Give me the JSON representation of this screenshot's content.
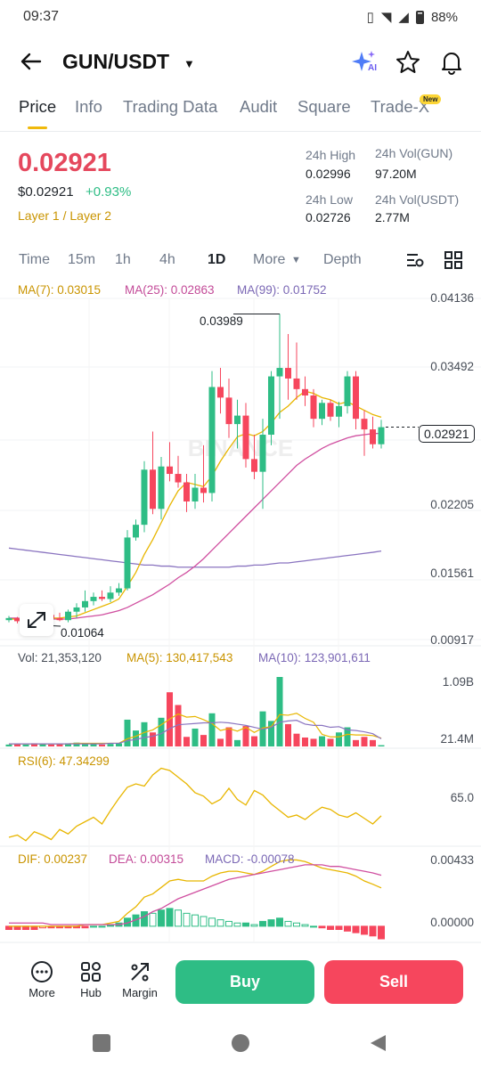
{
  "status": {
    "time": "09:37",
    "battery": "88%"
  },
  "header": {
    "pair": "GUN/USDT",
    "ai_label": "AI"
  },
  "tabs": [
    {
      "label": "Price",
      "active": true
    },
    {
      "label": "Info"
    },
    {
      "label": "Trading Data"
    },
    {
      "label": "Audit"
    },
    {
      "label": "Square"
    },
    {
      "label": "Trade-X",
      "badge": "New"
    }
  ],
  "ticker": {
    "price": "0.02921",
    "usd_price": "$0.02921",
    "change": "+0.93%",
    "tag": "Layer 1 / Layer 2",
    "high_label": "24h High",
    "high": "0.02996",
    "low_label": "24h Low",
    "low": "0.02726",
    "vol_base_label": "24h Vol(GUN)",
    "vol_base": "97.20M",
    "vol_quote_label": "24h Vol(USDT)",
    "vol_quote": "2.77M"
  },
  "timeframes": [
    {
      "label": "Time"
    },
    {
      "label": "15m"
    },
    {
      "label": "1h"
    },
    {
      "label": "4h"
    },
    {
      "label": "1D",
      "active": true
    },
    {
      "label": "More"
    },
    {
      "label": "Depth"
    }
  ],
  "main_chart": {
    "ma7": "MA(7): 0.03015",
    "ma25": "MA(25): 0.02863",
    "ma99": "MA(99): 0.01752",
    "y_labels": [
      "0.04136",
      "0.03492",
      "0.02921",
      "0.02205",
      "0.01561",
      "0.00917"
    ],
    "high_marker": "0.03989",
    "low_marker": "0.01064",
    "watermark": "BINANCE"
  },
  "volume_chart": {
    "vol": "Vol: 21,353,120",
    "ma5": "MA(5): 130,417,543",
    "ma10": "MA(10): 123,901,611",
    "y_labels": [
      "1.09B",
      "21.4M"
    ]
  },
  "rsi_chart": {
    "rsi": "RSI(6): 47.34299",
    "y_label": "65.0"
  },
  "macd_chart": {
    "dif": "DIF: 0.00237",
    "dea": "DEA: 0.00315",
    "macd": "MACD: -0.00078",
    "y_labels": [
      "0.00433",
      "0.00000"
    ]
  },
  "bottom_nav": {
    "more": "More",
    "hub": "Hub",
    "margin": "Margin",
    "buy": "Buy",
    "sell": "Sell"
  },
  "colors": {
    "up": "#2ebd85",
    "down": "#f6465d",
    "accent": "#f0b90b",
    "ma7": "#e8b600",
    "ma25": "#d04fa0",
    "ma99": "#8a74c0"
  },
  "chart_data": {
    "type": "candlestick",
    "y_range": [
      0.00917,
      0.04136
    ],
    "candles": [
      {
        "o": 0.011,
        "h": 0.0114,
        "l": 0.0108,
        "c": 0.0112
      },
      {
        "o": 0.0112,
        "h": 0.0113,
        "l": 0.0107,
        "c": 0.0109
      },
      {
        "o": 0.0109,
        "h": 0.0112,
        "l": 0.0106,
        "c": 0.0111
      },
      {
        "o": 0.0111,
        "h": 0.0115,
        "l": 0.0108,
        "c": 0.011
      },
      {
        "o": 0.011,
        "h": 0.0118,
        "l": 0.01064,
        "c": 0.0115
      },
      {
        "o": 0.0115,
        "h": 0.0119,
        "l": 0.011,
        "c": 0.0112
      },
      {
        "o": 0.0112,
        "h": 0.0117,
        "l": 0.0109,
        "c": 0.011
      },
      {
        "o": 0.011,
        "h": 0.012,
        "l": 0.0108,
        "c": 0.0118
      },
      {
        "o": 0.0118,
        "h": 0.0126,
        "l": 0.0112,
        "c": 0.0122
      },
      {
        "o": 0.0122,
        "h": 0.0138,
        "l": 0.0118,
        "c": 0.0128
      },
      {
        "o": 0.0128,
        "h": 0.0136,
        "l": 0.0124,
        "c": 0.0132
      },
      {
        "o": 0.0132,
        "h": 0.0138,
        "l": 0.0128,
        "c": 0.013
      },
      {
        "o": 0.013,
        "h": 0.0142,
        "l": 0.0127,
        "c": 0.0136
      },
      {
        "o": 0.0136,
        "h": 0.0145,
        "l": 0.0133,
        "c": 0.014
      },
      {
        "o": 0.014,
        "h": 0.0195,
        "l": 0.0138,
        "c": 0.0188
      },
      {
        "o": 0.0188,
        "h": 0.0205,
        "l": 0.0185,
        "c": 0.02
      },
      {
        "o": 0.02,
        "h": 0.026,
        "l": 0.0193,
        "c": 0.0252
      },
      {
        "o": 0.0252,
        "h": 0.0288,
        "l": 0.021,
        "c": 0.0215
      },
      {
        "o": 0.0215,
        "h": 0.0264,
        "l": 0.0205,
        "c": 0.0255
      },
      {
        "o": 0.0255,
        "h": 0.0278,
        "l": 0.0241,
        "c": 0.0248
      },
      {
        "o": 0.0248,
        "h": 0.0265,
        "l": 0.0235,
        "c": 0.024
      },
      {
        "o": 0.024,
        "h": 0.0248,
        "l": 0.0212,
        "c": 0.0222
      },
      {
        "o": 0.0222,
        "h": 0.0248,
        "l": 0.0215,
        "c": 0.0235
      },
      {
        "o": 0.0235,
        "h": 0.0275,
        "l": 0.0221,
        "c": 0.023
      },
      {
        "o": 0.023,
        "h": 0.0345,
        "l": 0.0222,
        "c": 0.033
      },
      {
        "o": 0.033,
        "h": 0.0348,
        "l": 0.0305,
        "c": 0.032
      },
      {
        "o": 0.032,
        "h": 0.0338,
        "l": 0.0282,
        "c": 0.0295
      },
      {
        "o": 0.0295,
        "h": 0.0318,
        "l": 0.0272,
        "c": 0.0303
      },
      {
        "o": 0.0303,
        "h": 0.0315,
        "l": 0.0254,
        "c": 0.0262
      },
      {
        "o": 0.0262,
        "h": 0.0285,
        "l": 0.0243,
        "c": 0.025
      },
      {
        "o": 0.025,
        "h": 0.03,
        "l": 0.0215,
        "c": 0.0285
      },
      {
        "o": 0.0285,
        "h": 0.0345,
        "l": 0.0275,
        "c": 0.034
      },
      {
        "o": 0.034,
        "h": 0.03989,
        "l": 0.03,
        "c": 0.0348
      },
      {
        "o": 0.0348,
        "h": 0.038,
        "l": 0.0318,
        "c": 0.0338
      },
      {
        "o": 0.0338,
        "h": 0.0372,
        "l": 0.0318,
        "c": 0.0328
      },
      {
        "o": 0.0328,
        "h": 0.034,
        "l": 0.0312,
        "c": 0.0322
      },
      {
        "o": 0.0322,
        "h": 0.0328,
        "l": 0.0292,
        "c": 0.03
      },
      {
        "o": 0.03,
        "h": 0.0318,
        "l": 0.0294,
        "c": 0.0315
      },
      {
        "o": 0.0315,
        "h": 0.0318,
        "l": 0.0298,
        "c": 0.0302
      },
      {
        "o": 0.0302,
        "h": 0.0316,
        "l": 0.0292,
        "c": 0.0312
      },
      {
        "o": 0.0312,
        "h": 0.0345,
        "l": 0.0305,
        "c": 0.034
      },
      {
        "o": 0.034,
        "h": 0.0345,
        "l": 0.029,
        "c": 0.03
      },
      {
        "o": 0.03,
        "h": 0.0308,
        "l": 0.0265,
        "c": 0.029
      },
      {
        "o": 0.029,
        "h": 0.0302,
        "l": 0.0272,
        "c": 0.0276
      },
      {
        "o": 0.0276,
        "h": 0.0299,
        "l": 0.0272,
        "c": 0.02921
      }
    ],
    "ma7": [
      0.0111,
      0.0111,
      0.011,
      0.0111,
      0.0111,
      0.0112,
      0.0112,
      0.0113,
      0.0114,
      0.0117,
      0.012,
      0.0123,
      0.0126,
      0.013,
      0.0142,
      0.0155,
      0.0172,
      0.0186,
      0.0202,
      0.0218,
      0.0232,
      0.024,
      0.0238,
      0.0236,
      0.0246,
      0.026,
      0.0272,
      0.0283,
      0.0286,
      0.0284,
      0.0288,
      0.0296,
      0.0306,
      0.0312,
      0.032,
      0.0326,
      0.0324,
      0.032,
      0.0318,
      0.0314,
      0.0316,
      0.0312,
      0.0308,
      0.0304,
      0.03015
    ],
    "ma25": [
      0.0112,
      0.0112,
      0.0111,
      0.0111,
      0.0111,
      0.0111,
      0.0111,
      0.0111,
      0.0112,
      0.0113,
      0.0114,
      0.0115,
      0.0117,
      0.0119,
      0.0122,
      0.0126,
      0.013,
      0.0134,
      0.0139,
      0.0144,
      0.015,
      0.0155,
      0.0161,
      0.0168,
      0.0176,
      0.0184,
      0.0192,
      0.02,
      0.0208,
      0.0216,
      0.0224,
      0.0232,
      0.024,
      0.0248,
      0.0256,
      0.0262,
      0.0267,
      0.0272,
      0.0276,
      0.0279,
      0.0282,
      0.0284,
      0.0285,
      0.0286,
      0.02863
    ],
    "ma99": [
      0.0178,
      0.0177,
      0.0176,
      0.0175,
      0.0174,
      0.0173,
      0.0172,
      0.0171,
      0.017,
      0.0169,
      0.0168,
      0.0167,
      0.0166,
      0.0165,
      0.0164,
      0.0163,
      0.0162,
      0.0162,
      0.0161,
      0.0161,
      0.016,
      0.016,
      0.016,
      0.016,
      0.016,
      0.016,
      0.016,
      0.0161,
      0.0161,
      0.0162,
      0.0162,
      0.0163,
      0.0164,
      0.0164,
      0.0165,
      0.0166,
      0.0167,
      0.0168,
      0.0169,
      0.017,
      0.0171,
      0.0172,
      0.0173,
      0.0174,
      0.01752
    ],
    "volume_range": [
      0,
      1.09
    ],
    "volumes": [
      0.03,
      0.04,
      0.03,
      0.05,
      0.04,
      0.03,
      0.04,
      0.05,
      0.06,
      0.05,
      0.04,
      0.03,
      0.04,
      0.05,
      0.42,
      0.25,
      0.38,
      0.22,
      0.45,
      0.85,
      0.65,
      0.15,
      0.28,
      0.18,
      0.52,
      0.12,
      0.3,
      0.1,
      0.32,
      0.16,
      0.55,
      0.4,
      1.09,
      0.35,
      0.2,
      0.14,
      0.12,
      0.16,
      0.12,
      0.22,
      0.3,
      0.1,
      0.15,
      0.1,
      0.02
    ],
    "vol_ma5": [
      0.04,
      0.04,
      0.04,
      0.04,
      0.04,
      0.04,
      0.04,
      0.04,
      0.05,
      0.05,
      0.05,
      0.05,
      0.05,
      0.05,
      0.12,
      0.16,
      0.22,
      0.26,
      0.34,
      0.43,
      0.51,
      0.46,
      0.47,
      0.42,
      0.36,
      0.25,
      0.28,
      0.24,
      0.3,
      0.22,
      0.29,
      0.31,
      0.5,
      0.49,
      0.52,
      0.44,
      0.38,
      0.19,
      0.15,
      0.15,
      0.19,
      0.18,
      0.18,
      0.17,
      0.13
    ],
    "vol_ma10": [
      0.04,
      0.04,
      0.04,
      0.04,
      0.04,
      0.04,
      0.04,
      0.04,
      0.04,
      0.04,
      0.04,
      0.04,
      0.05,
      0.05,
      0.09,
      0.11,
      0.14,
      0.16,
      0.2,
      0.28,
      0.34,
      0.35,
      0.36,
      0.37,
      0.37,
      0.38,
      0.37,
      0.35,
      0.33,
      0.3,
      0.27,
      0.3,
      0.38,
      0.4,
      0.41,
      0.35,
      0.33,
      0.33,
      0.3,
      0.31,
      0.26,
      0.25,
      0.23,
      0.2,
      0.12
    ],
    "rsi_range": [
      20,
      100
    ],
    "rsi": [
      28,
      30,
      25,
      33,
      30,
      26,
      35,
      31,
      38,
      42,
      46,
      40,
      52,
      63,
      73,
      76,
      74,
      84,
      90,
      88,
      82,
      76,
      68,
      65,
      58,
      62,
      72,
      62,
      57,
      70,
      66,
      58,
      52,
      46,
      48,
      44,
      50,
      55,
      53,
      48,
      46,
      50,
      45,
      40,
      47.3
    ],
    "macd_range": [
      -0.001,
      0.0044
    ],
    "macd_hist": [
      -0.0002,
      -0.0002,
      -0.0002,
      -0.0002,
      -0.0001,
      -0.0001,
      -0.0001,
      -0.0001,
      -0.0001,
      -0.0001,
      0.0,
      0.0,
      0.0001,
      0.0002,
      0.0005,
      0.0007,
      0.0009,
      0.0008,
      0.001,
      0.0011,
      0.001,
      0.0008,
      0.0007,
      0.0006,
      0.0005,
      0.0004,
      0.0003,
      0.0002,
      0.0002,
      0.0001,
      0.0003,
      0.0004,
      0.0005,
      0.0003,
      0.0002,
      0.0001,
      0.0,
      -0.0001,
      -0.0002,
      -0.0002,
      -0.0003,
      -0.0004,
      -0.0005,
      -0.0006,
      -0.00078
    ],
    "dif": [
      0.0,
      0.0,
      0.0,
      0.0,
      0.0,
      0.0,
      0.0,
      0.0,
      0.0,
      0.0001,
      0.0001,
      0.0001,
      0.0002,
      0.0003,
      0.0008,
      0.0012,
      0.0018,
      0.002,
      0.0024,
      0.0028,
      0.0029,
      0.0028,
      0.0028,
      0.0028,
      0.0031,
      0.0033,
      0.0034,
      0.0034,
      0.0033,
      0.0032,
      0.0034,
      0.0037,
      0.004,
      0.0041,
      0.0041,
      0.004,
      0.0038,
      0.0036,
      0.0035,
      0.0034,
      0.0033,
      0.0031,
      0.0028,
      0.0026,
      0.00237
    ],
    "dea": [
      0.0002,
      0.0002,
      0.0002,
      0.0002,
      0.0002,
      0.0001,
      0.0001,
      0.0001,
      0.0001,
      0.0001,
      0.0001,
      0.0001,
      0.0001,
      0.0001,
      0.0002,
      0.0004,
      0.0006,
      0.0009,
      0.0011,
      0.0014,
      0.0017,
      0.0019,
      0.0021,
      0.0023,
      0.0025,
      0.0027,
      0.0029,
      0.003,
      0.0031,
      0.0032,
      0.0033,
      0.0034,
      0.0035,
      0.0036,
      0.0037,
      0.0038,
      0.0038,
      0.0038,
      0.0037,
      0.0037,
      0.0036,
      0.0035,
      0.0034,
      0.0033,
      0.00315
    ]
  }
}
